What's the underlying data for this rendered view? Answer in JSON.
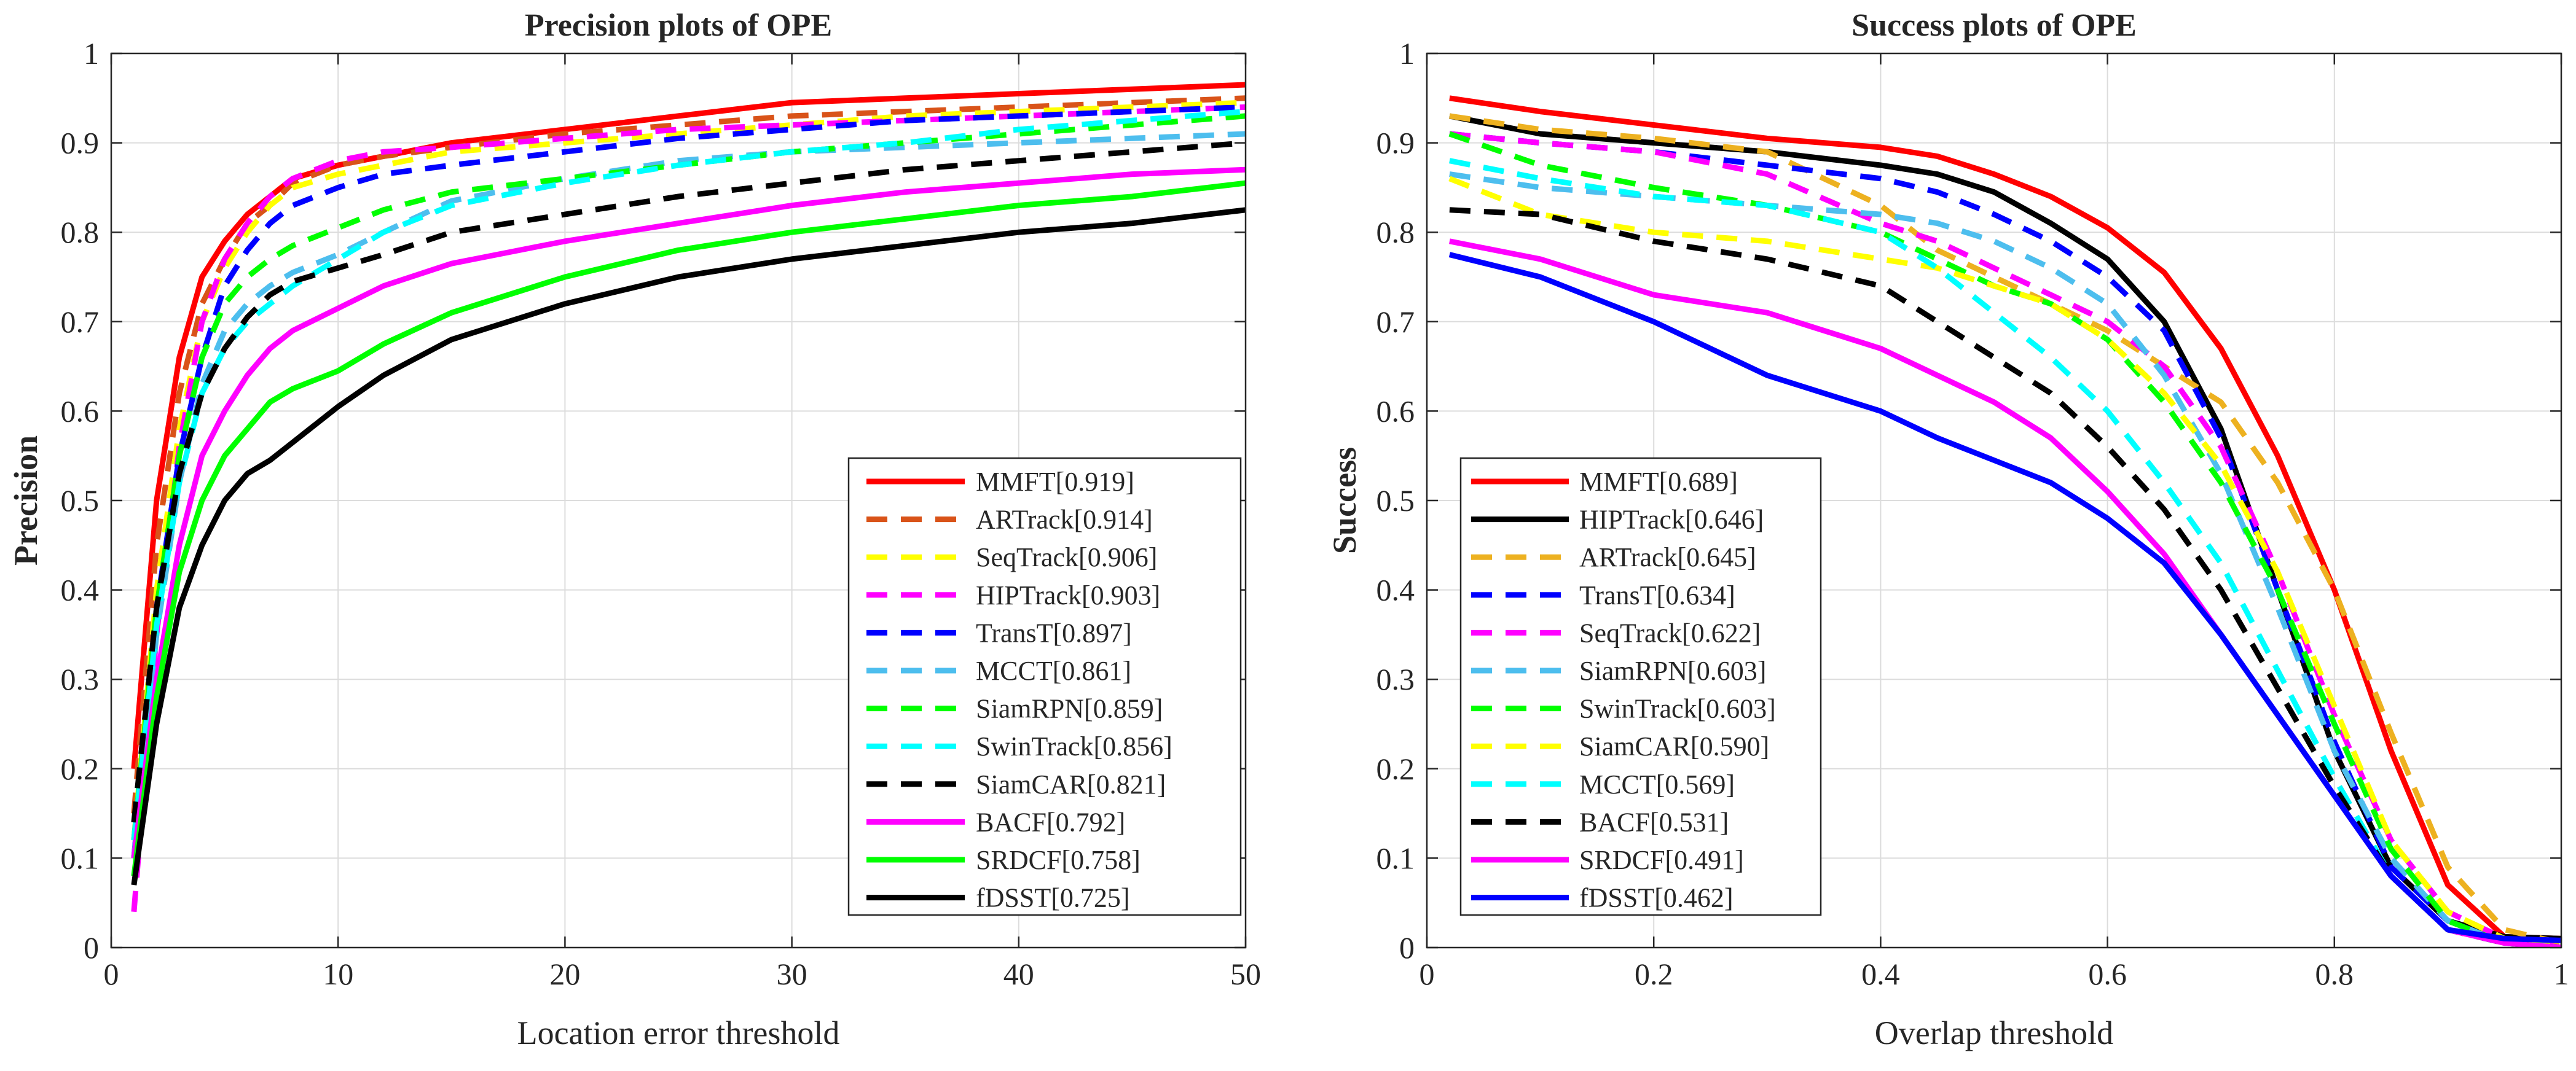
{
  "chart_data": [
    {
      "type": "line",
      "title": "Precision plots of OPE",
      "xlabel": "Location error threshold",
      "ylabel": "Precision",
      "xlim": [
        0,
        50
      ],
      "ylim": [
        0,
        1
      ],
      "xticks": [
        "0",
        "10",
        "20",
        "30",
        "40",
        "50"
      ],
      "yticks": [
        "0",
        "0.1",
        "0.2",
        "0.3",
        "0.4",
        "0.5",
        "0.6",
        "0.7",
        "0.8",
        "0.9",
        "1"
      ],
      "grid": true,
      "legend_position": "bottom-right",
      "series": [
        {
          "name": "MMFT[0.919]",
          "color": "#ff0000",
          "dash": "solid",
          "x": [
            1,
            2,
            3,
            4,
            5,
            6,
            7,
            8,
            10,
            12,
            15,
            20,
            25,
            30,
            35,
            40,
            45,
            50
          ],
          "y": [
            0.2,
            0.5,
            0.66,
            0.75,
            0.79,
            0.82,
            0.84,
            0.86,
            0.875,
            0.885,
            0.9,
            0.915,
            0.93,
            0.945,
            0.95,
            0.955,
            0.96,
            0.965
          ]
        },
        {
          "name": "ARTrack[0.914]",
          "color": "#d95319",
          "dash": "dashed",
          "x": [
            1,
            2,
            3,
            4,
            5,
            6,
            7,
            8,
            10,
            12,
            15,
            20,
            25,
            30,
            35,
            40,
            45,
            50
          ],
          "y": [
            0.15,
            0.45,
            0.62,
            0.72,
            0.77,
            0.81,
            0.83,
            0.855,
            0.875,
            0.885,
            0.895,
            0.91,
            0.92,
            0.93,
            0.935,
            0.94,
            0.945,
            0.95
          ]
        },
        {
          "name": "SeqTrack[0.906]",
          "color": "#ffff00",
          "dash": "dashed",
          "x": [
            1,
            2,
            3,
            4,
            5,
            6,
            7,
            8,
            10,
            12,
            15,
            20,
            25,
            30,
            35,
            40,
            45,
            50
          ],
          "y": [
            0.12,
            0.4,
            0.58,
            0.7,
            0.76,
            0.8,
            0.83,
            0.85,
            0.865,
            0.875,
            0.89,
            0.9,
            0.91,
            0.92,
            0.93,
            0.935,
            0.94,
            0.945
          ]
        },
        {
          "name": "HIPTrack[0.903]",
          "color": "#ff00ff",
          "dash": "dashed",
          "x": [
            1,
            2,
            3,
            4,
            5,
            6,
            7,
            8,
            10,
            12,
            15,
            20,
            25,
            30,
            35,
            40,
            45,
            50
          ],
          "y": [
            0.04,
            0.35,
            0.56,
            0.7,
            0.77,
            0.81,
            0.84,
            0.86,
            0.88,
            0.89,
            0.895,
            0.905,
            0.915,
            0.92,
            0.925,
            0.93,
            0.935,
            0.94
          ]
        },
        {
          "name": "TransT[0.897]",
          "color": "#0000ff",
          "dash": "dashed",
          "x": [
            1,
            2,
            3,
            4,
            5,
            6,
            7,
            8,
            10,
            12,
            15,
            20,
            25,
            30,
            35,
            40,
            45,
            50
          ],
          "y": [
            0.1,
            0.38,
            0.55,
            0.66,
            0.74,
            0.78,
            0.81,
            0.83,
            0.85,
            0.865,
            0.875,
            0.89,
            0.905,
            0.915,
            0.925,
            0.93,
            0.935,
            0.94
          ]
        },
        {
          "name": "MCCT[0.861]",
          "color": "#4dbeee",
          "dash": "dashed",
          "x": [
            1,
            2,
            3,
            4,
            5,
            6,
            7,
            8,
            10,
            12,
            15,
            20,
            25,
            30,
            35,
            40,
            45,
            50
          ],
          "y": [
            0.1,
            0.35,
            0.52,
            0.63,
            0.69,
            0.72,
            0.74,
            0.755,
            0.775,
            0.8,
            0.835,
            0.86,
            0.88,
            0.89,
            0.895,
            0.9,
            0.905,
            0.91
          ]
        },
        {
          "name": "SiamRPN[0.859]",
          "color": "#00ff00",
          "dash": "dashed",
          "x": [
            1,
            2,
            3,
            4,
            5,
            6,
            7,
            8,
            10,
            12,
            15,
            20,
            25,
            30,
            35,
            40,
            45,
            50
          ],
          "y": [
            0.12,
            0.38,
            0.55,
            0.66,
            0.72,
            0.75,
            0.77,
            0.785,
            0.805,
            0.825,
            0.845,
            0.86,
            0.875,
            0.89,
            0.9,
            0.91,
            0.92,
            0.93
          ]
        },
        {
          "name": "SwinTrack[0.856]",
          "color": "#00ffff",
          "dash": "dashed",
          "x": [
            1,
            2,
            3,
            4,
            5,
            6,
            7,
            8,
            10,
            12,
            15,
            20,
            25,
            30,
            35,
            40,
            45,
            50
          ],
          "y": [
            0.12,
            0.36,
            0.52,
            0.62,
            0.67,
            0.7,
            0.72,
            0.74,
            0.77,
            0.8,
            0.83,
            0.855,
            0.875,
            0.89,
            0.9,
            0.915,
            0.925,
            0.935
          ]
        },
        {
          "name": "SiamCAR[0.821]",
          "color": "#000000",
          "dash": "dashed",
          "x": [
            1,
            2,
            3,
            4,
            5,
            6,
            7,
            8,
            10,
            12,
            15,
            20,
            25,
            30,
            35,
            40,
            45,
            50
          ],
          "y": [
            0.14,
            0.38,
            0.53,
            0.62,
            0.67,
            0.705,
            0.73,
            0.745,
            0.76,
            0.775,
            0.8,
            0.82,
            0.84,
            0.855,
            0.87,
            0.88,
            0.89,
            0.9
          ]
        },
        {
          "name": "BACF[0.792]",
          "color": "#ff00ff",
          "dash": "solid",
          "x": [
            1,
            2,
            3,
            4,
            5,
            6,
            7,
            8,
            10,
            12,
            15,
            20,
            25,
            30,
            35,
            40,
            45,
            50
          ],
          "y": [
            0.1,
            0.3,
            0.45,
            0.55,
            0.6,
            0.64,
            0.67,
            0.69,
            0.715,
            0.74,
            0.765,
            0.79,
            0.81,
            0.83,
            0.845,
            0.855,
            0.865,
            0.87
          ]
        },
        {
          "name": "SRDCF[0.758]",
          "color": "#00ff00",
          "dash": "solid",
          "x": [
            1,
            2,
            3,
            4,
            5,
            6,
            7,
            8,
            10,
            12,
            15,
            20,
            25,
            30,
            35,
            40,
            45,
            50
          ],
          "y": [
            0.08,
            0.28,
            0.42,
            0.5,
            0.55,
            0.58,
            0.61,
            0.625,
            0.645,
            0.675,
            0.71,
            0.75,
            0.78,
            0.8,
            0.815,
            0.83,
            0.84,
            0.855
          ]
        },
        {
          "name": "fDSST[0.725]",
          "color": "#000000",
          "dash": "solid",
          "x": [
            1,
            2,
            3,
            4,
            5,
            6,
            7,
            8,
            10,
            12,
            15,
            20,
            25,
            30,
            35,
            40,
            45,
            50
          ],
          "y": [
            0.07,
            0.25,
            0.38,
            0.45,
            0.5,
            0.53,
            0.545,
            0.565,
            0.605,
            0.64,
            0.68,
            0.72,
            0.75,
            0.77,
            0.785,
            0.8,
            0.81,
            0.825
          ]
        }
      ]
    },
    {
      "type": "line",
      "title": "Success plots of OPE",
      "xlabel": "Overlap threshold",
      "ylabel": "Success",
      "xlim": [
        0,
        1
      ],
      "ylim": [
        0,
        1
      ],
      "xticks": [
        "0",
        "0.2",
        "0.4",
        "0.6",
        "0.8",
        "1"
      ],
      "yticks": [
        "0",
        "0.1",
        "0.2",
        "0.3",
        "0.4",
        "0.5",
        "0.6",
        "0.7",
        "0.8",
        "0.9",
        "1"
      ],
      "grid": true,
      "legend_position": "bottom-left",
      "series": [
        {
          "name": "MMFT[0.689]",
          "color": "#ff0000",
          "dash": "solid",
          "x": [
            0.02,
            0.1,
            0.2,
            0.3,
            0.4,
            0.45,
            0.5,
            0.55,
            0.6,
            0.65,
            0.7,
            0.75,
            0.8,
            0.85,
            0.9,
            0.95,
            1.0
          ],
          "y": [
            0.95,
            0.935,
            0.92,
            0.905,
            0.895,
            0.885,
            0.865,
            0.84,
            0.805,
            0.755,
            0.67,
            0.55,
            0.4,
            0.22,
            0.07,
            0.012,
            0.01
          ]
        },
        {
          "name": "HIPTrack[0.646]",
          "color": "#000000",
          "dash": "solid",
          "x": [
            0.02,
            0.1,
            0.2,
            0.3,
            0.4,
            0.45,
            0.5,
            0.55,
            0.6,
            0.65,
            0.7,
            0.75,
            0.8,
            0.85,
            0.9,
            0.95,
            1.0
          ],
          "y": [
            0.93,
            0.91,
            0.9,
            0.89,
            0.875,
            0.865,
            0.845,
            0.81,
            0.77,
            0.7,
            0.58,
            0.4,
            0.22,
            0.09,
            0.03,
            0.012,
            0.01
          ]
        },
        {
          "name": "ARTrack[0.645]",
          "color": "#edb120",
          "dash": "dashed",
          "x": [
            0.02,
            0.1,
            0.2,
            0.3,
            0.4,
            0.45,
            0.5,
            0.55,
            0.6,
            0.65,
            0.7,
            0.75,
            0.8,
            0.85,
            0.9,
            0.95,
            1.0
          ],
          "y": [
            0.93,
            0.915,
            0.905,
            0.89,
            0.83,
            0.78,
            0.75,
            0.72,
            0.69,
            0.65,
            0.61,
            0.52,
            0.4,
            0.24,
            0.09,
            0.02,
            0.005
          ]
        },
        {
          "name": "TransT[0.634]",
          "color": "#0000ff",
          "dash": "dashed",
          "x": [
            0.02,
            0.1,
            0.2,
            0.3,
            0.4,
            0.45,
            0.5,
            0.55,
            0.6,
            0.65,
            0.7,
            0.75,
            0.8,
            0.85,
            0.9,
            0.95,
            1.0
          ],
          "y": [
            0.91,
            0.9,
            0.89,
            0.875,
            0.86,
            0.845,
            0.82,
            0.79,
            0.75,
            0.69,
            0.57,
            0.4,
            0.23,
            0.09,
            0.03,
            0.005,
            0.0
          ]
        },
        {
          "name": "SeqTrack[0.622]",
          "color": "#ff00ff",
          "dash": "dashed",
          "x": [
            0.02,
            0.1,
            0.2,
            0.3,
            0.4,
            0.45,
            0.5,
            0.55,
            0.6,
            0.65,
            0.7,
            0.75,
            0.8,
            0.85,
            0.9,
            0.95,
            1.0
          ],
          "y": [
            0.91,
            0.9,
            0.89,
            0.865,
            0.81,
            0.79,
            0.76,
            0.73,
            0.7,
            0.65,
            0.56,
            0.42,
            0.26,
            0.12,
            0.04,
            0.01,
            0.0
          ]
        },
        {
          "name": "SiamRPN[0.603]",
          "color": "#4dbeee",
          "dash": "dashed",
          "x": [
            0.02,
            0.1,
            0.2,
            0.3,
            0.4,
            0.45,
            0.5,
            0.55,
            0.6,
            0.65,
            0.7,
            0.75,
            0.8,
            0.85,
            0.9,
            0.95,
            1.0
          ],
          "y": [
            0.865,
            0.85,
            0.84,
            0.83,
            0.82,
            0.81,
            0.79,
            0.76,
            0.72,
            0.64,
            0.53,
            0.38,
            0.22,
            0.1,
            0.03,
            0.005,
            0.0
          ]
        },
        {
          "name": "SwinTrack[0.603]",
          "color": "#00ff00",
          "dash": "dashed",
          "x": [
            0.02,
            0.1,
            0.2,
            0.3,
            0.4,
            0.45,
            0.5,
            0.55,
            0.6,
            0.65,
            0.7,
            0.75,
            0.8,
            0.85,
            0.9,
            0.95,
            1.0
          ],
          "y": [
            0.91,
            0.875,
            0.85,
            0.83,
            0.8,
            0.77,
            0.74,
            0.72,
            0.68,
            0.61,
            0.52,
            0.4,
            0.25,
            0.11,
            0.03,
            0.005,
            0.0
          ]
        },
        {
          "name": "SiamCAR[0.590]",
          "color": "#ffff00",
          "dash": "dashed",
          "x": [
            0.02,
            0.1,
            0.2,
            0.3,
            0.4,
            0.45,
            0.5,
            0.55,
            0.6,
            0.65,
            0.7,
            0.75,
            0.8,
            0.85,
            0.9,
            0.95,
            1.0
          ],
          "y": [
            0.86,
            0.82,
            0.8,
            0.79,
            0.77,
            0.76,
            0.74,
            0.72,
            0.68,
            0.62,
            0.54,
            0.42,
            0.27,
            0.12,
            0.04,
            0.01,
            0.0
          ]
        },
        {
          "name": "MCCT[0.569]",
          "color": "#00ffff",
          "dash": "dashed",
          "x": [
            0.02,
            0.1,
            0.2,
            0.3,
            0.4,
            0.45,
            0.5,
            0.55,
            0.6,
            0.65,
            0.7,
            0.75,
            0.8,
            0.85,
            0.9,
            0.95,
            1.0
          ],
          "y": [
            0.88,
            0.86,
            0.84,
            0.83,
            0.8,
            0.76,
            0.71,
            0.66,
            0.6,
            0.52,
            0.43,
            0.31,
            0.19,
            0.08,
            0.02,
            0.005,
            0.0
          ]
        },
        {
          "name": "BACF[0.531]",
          "color": "#000000",
          "dash": "dashed",
          "x": [
            0.02,
            0.1,
            0.2,
            0.3,
            0.4,
            0.45,
            0.5,
            0.55,
            0.6,
            0.65,
            0.7,
            0.75,
            0.8,
            0.85,
            0.9,
            0.95,
            1.0
          ],
          "y": [
            0.825,
            0.82,
            0.79,
            0.77,
            0.74,
            0.7,
            0.66,
            0.62,
            0.56,
            0.49,
            0.4,
            0.29,
            0.18,
            0.08,
            0.02,
            0.005,
            0.0
          ]
        },
        {
          "name": "SRDCF[0.491]",
          "color": "#ff00ff",
          "dash": "solid",
          "x": [
            0.02,
            0.1,
            0.2,
            0.3,
            0.4,
            0.45,
            0.5,
            0.55,
            0.6,
            0.65,
            0.7,
            0.75,
            0.8,
            0.85,
            0.9,
            0.95,
            1.0
          ],
          "y": [
            0.79,
            0.77,
            0.73,
            0.71,
            0.67,
            0.64,
            0.61,
            0.57,
            0.51,
            0.44,
            0.35,
            0.26,
            0.17,
            0.08,
            0.02,
            0.005,
            0.0
          ]
        },
        {
          "name": "fDSST[0.462]",
          "color": "#0000ff",
          "dash": "solid",
          "x": [
            0.02,
            0.1,
            0.2,
            0.3,
            0.4,
            0.45,
            0.5,
            0.55,
            0.6,
            0.65,
            0.7,
            0.75,
            0.8,
            0.85,
            0.9,
            0.95,
            1.0
          ],
          "y": [
            0.775,
            0.75,
            0.7,
            0.64,
            0.6,
            0.57,
            0.545,
            0.52,
            0.48,
            0.43,
            0.35,
            0.26,
            0.17,
            0.08,
            0.02,
            0.01,
            0.008
          ]
        }
      ]
    }
  ]
}
